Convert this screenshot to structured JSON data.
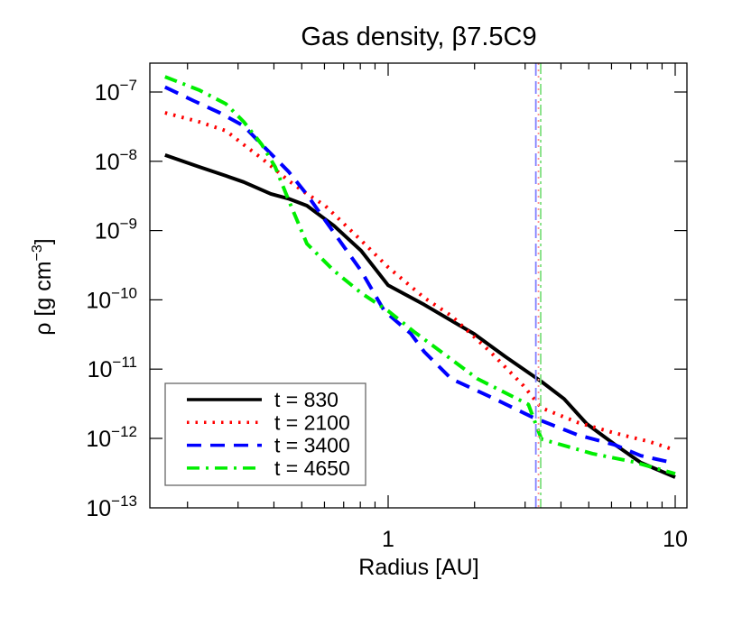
{
  "chart_data": {
    "type": "line",
    "title": "Gas density, β7.5C9",
    "xlabel": "Radius [AU]",
    "ylabel": "ρ [g cm⁻³]",
    "ylabel_parts": {
      "main": "ρ [g cm",
      "sup": "−3",
      "close": "]"
    },
    "xscale": "log",
    "yscale": "log",
    "xlim": [
      0.148,
      11.0
    ],
    "ylim": [
      1e-13,
      2.6e-07
    ],
    "xticks": [
      {
        "value": 1,
        "label": "1"
      },
      {
        "value": 10,
        "label": "10"
      }
    ],
    "yticks": [
      {
        "exp": -7,
        "label": "10",
        "sup": "−7"
      },
      {
        "exp": -8,
        "label": "10",
        "sup": "−8"
      },
      {
        "exp": -9,
        "label": "10",
        "sup": "−9"
      },
      {
        "exp": -10,
        "label": "10",
        "sup": "−10"
      },
      {
        "exp": -11,
        "label": "10",
        "sup": "−11"
      },
      {
        "exp": -12,
        "label": "10",
        "sup": "−12"
      },
      {
        "exp": -13,
        "label": "10",
        "sup": "−13"
      }
    ],
    "grid": false,
    "legend_position": "lower left",
    "series": [
      {
        "name": "t = 830",
        "color": "#000000",
        "style": "solid",
        "x": [
          0.167,
          0.219,
          0.272,
          0.314,
          0.39,
          0.45,
          0.521,
          0.647,
          0.805,
          1.0,
          1.336,
          1.99,
          2.56,
          3.42,
          4.1,
          4.92,
          6.12,
          7.59,
          10.0
        ],
        "log_rho": [
          -7.91,
          -8.08,
          -8.21,
          -8.3,
          -8.47,
          -8.54,
          -8.64,
          -8.93,
          -9.29,
          -9.79,
          -10.07,
          -10.49,
          -10.82,
          -11.18,
          -11.43,
          -11.79,
          -12.08,
          -12.35,
          -12.56
        ]
      },
      {
        "name": "t = 2100",
        "color": "#ff0000",
        "style": "dotted",
        "x": [
          0.167,
          0.219,
          0.272,
          0.314,
          0.363,
          0.45,
          0.521,
          0.603,
          0.805,
          1.0,
          1.336,
          1.66,
          2.27,
          2.96,
          3.42,
          4.57,
          6.12,
          8.17,
          10.0
        ],
        "log_rho": [
          -7.3,
          -7.43,
          -7.56,
          -7.76,
          -7.96,
          -8.28,
          -8.47,
          -8.64,
          -9.14,
          -9.53,
          -9.97,
          -10.23,
          -10.75,
          -11.24,
          -11.56,
          -11.77,
          -11.92,
          -12.05,
          -12.17
        ]
      },
      {
        "name": "t = 3400",
        "color": "#0000ff",
        "style": "dashed",
        "x": [
          0.167,
          0.211,
          0.259,
          0.314,
          0.363,
          0.419,
          0.45,
          0.521,
          0.647,
          0.805,
          0.97,
          1.2,
          1.336,
          1.66,
          2.27,
          3.17,
          4.57,
          6.12,
          7.59,
          10.0
        ],
        "log_rho": [
          -6.93,
          -7.13,
          -7.3,
          -7.49,
          -7.76,
          -8.02,
          -8.15,
          -8.48,
          -9.03,
          -9.58,
          -10.16,
          -10.49,
          -10.75,
          -11.14,
          -11.4,
          -11.69,
          -11.95,
          -12.09,
          -12.25,
          -12.36
        ]
      },
      {
        "name": "t = 4650",
        "color": "#00ee00",
        "style": "dashdot",
        "x": [
          0.167,
          0.219,
          0.272,
          0.314,
          0.363,
          0.404,
          0.45,
          0.521,
          0.647,
          0.805,
          1.0,
          1.23,
          1.53,
          2.05,
          3.08,
          3.42,
          5.15,
          7.16,
          10.0
        ],
        "log_rho": [
          -6.78,
          -6.97,
          -7.17,
          -7.43,
          -7.76,
          -8.08,
          -8.56,
          -9.19,
          -9.58,
          -9.9,
          -10.16,
          -10.46,
          -10.75,
          -11.14,
          -11.51,
          -12.01,
          -12.22,
          -12.34,
          -12.51
        ]
      }
    ],
    "vertical_lines": [
      {
        "x": 3.27,
        "color": "#8080ff",
        "style": "dashed"
      },
      {
        "x": 3.34,
        "color": "#ff9090",
        "style": "dotted"
      },
      {
        "x": 3.4,
        "color": "#80e080",
        "style": "dashdot"
      }
    ]
  }
}
